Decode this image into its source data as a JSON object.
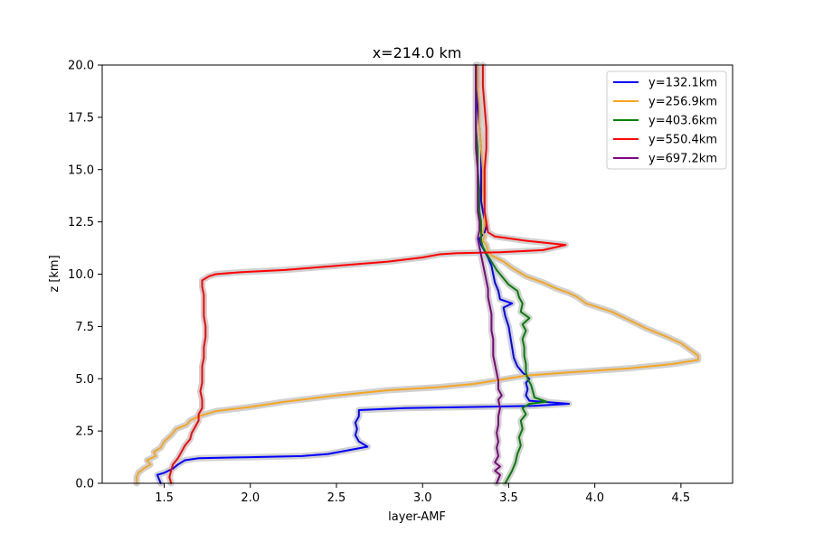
{
  "chart_data": {
    "type": "line",
    "title": "x=214.0 km",
    "xlabel": "layer-AMF",
    "ylabel": "z [km]",
    "xlim": [
      1.14,
      4.8
    ],
    "ylim": [
      0,
      20
    ],
    "xticks": [
      1.5,
      2.0,
      2.5,
      3.0,
      3.5,
      4.0,
      4.5
    ],
    "xtick_labels": [
      "1.5",
      "2.0",
      "2.5",
      "3.0",
      "3.5",
      "4.0",
      "4.5"
    ],
    "yticks": [
      0,
      2.5,
      5,
      7.5,
      10,
      12.5,
      15,
      17.5,
      20
    ],
    "ytick_labels": [
      "0.0",
      "2.5",
      "5.0",
      "7.5",
      "10.0",
      "12.5",
      "15.0",
      "17.5",
      "20.0"
    ],
    "grid": false,
    "legend_position": "top-right",
    "uncertainty_band_color": "#cccccc",
    "series": [
      {
        "name": "y=132.1km",
        "color": "#0000ff",
        "points": [
          [
            1.48,
            0.0
          ],
          [
            1.47,
            0.2
          ],
          [
            1.46,
            0.4
          ],
          [
            1.5,
            0.5
          ],
          [
            1.55,
            0.7
          ],
          [
            1.58,
            0.9
          ],
          [
            1.62,
            1.1
          ],
          [
            1.7,
            1.2
          ],
          [
            2.0,
            1.25
          ],
          [
            2.3,
            1.3
          ],
          [
            2.45,
            1.4
          ],
          [
            2.55,
            1.55
          ],
          [
            2.68,
            1.75
          ],
          [
            2.63,
            2.0
          ],
          [
            2.61,
            2.3
          ],
          [
            2.62,
            2.6
          ],
          [
            2.61,
            2.9
          ],
          [
            2.63,
            3.2
          ],
          [
            2.63,
            3.5
          ],
          [
            2.9,
            3.6
          ],
          [
            3.3,
            3.65
          ],
          [
            3.65,
            3.7
          ],
          [
            3.85,
            3.8
          ],
          [
            3.62,
            3.95
          ],
          [
            3.6,
            4.2
          ],
          [
            3.61,
            4.5
          ],
          [
            3.6,
            4.8
          ],
          [
            3.62,
            5.0
          ],
          [
            3.58,
            5.3
          ],
          [
            3.55,
            5.6
          ],
          [
            3.53,
            6.0
          ],
          [
            3.52,
            6.5
          ],
          [
            3.51,
            7.0
          ],
          [
            3.5,
            7.5
          ],
          [
            3.48,
            8.0
          ],
          [
            3.47,
            8.4
          ],
          [
            3.52,
            8.6
          ],
          [
            3.45,
            8.8
          ],
          [
            3.44,
            9.2
          ],
          [
            3.42,
            9.6
          ],
          [
            3.41,
            10.0
          ],
          [
            3.4,
            10.4
          ],
          [
            3.38,
            10.8
          ],
          [
            3.36,
            11.1
          ],
          [
            3.34,
            11.4
          ],
          [
            3.33,
            11.7
          ],
          [
            3.36,
            12.0
          ],
          [
            3.37,
            12.3
          ],
          [
            3.36,
            12.6
          ],
          [
            3.35,
            13.0
          ],
          [
            3.34,
            13.5
          ],
          [
            3.34,
            14.0
          ],
          [
            3.34,
            15.0
          ],
          [
            3.34,
            16.0
          ],
          [
            3.33,
            17.0
          ],
          [
            3.32,
            18.0
          ],
          [
            3.32,
            19.0
          ],
          [
            3.32,
            20.0
          ]
        ]
      },
      {
        "name": "y=256.9km",
        "color": "#f5a623",
        "points": [
          [
            1.34,
            0.0
          ],
          [
            1.34,
            0.3
          ],
          [
            1.35,
            0.5
          ],
          [
            1.38,
            0.7
          ],
          [
            1.42,
            0.9
          ],
          [
            1.4,
            1.1
          ],
          [
            1.45,
            1.3
          ],
          [
            1.44,
            1.5
          ],
          [
            1.48,
            1.7
          ],
          [
            1.5,
            2.0
          ],
          [
            1.54,
            2.3
          ],
          [
            1.57,
            2.6
          ],
          [
            1.63,
            2.8
          ],
          [
            1.65,
            3.0
          ],
          [
            1.7,
            3.2
          ],
          [
            1.8,
            3.45
          ],
          [
            2.0,
            3.65
          ],
          [
            2.2,
            3.9
          ],
          [
            2.5,
            4.2
          ],
          [
            2.8,
            4.45
          ],
          [
            3.1,
            4.6
          ],
          [
            3.3,
            4.75
          ],
          [
            3.45,
            4.95
          ],
          [
            3.6,
            5.15
          ],
          [
            3.85,
            5.3
          ],
          [
            4.2,
            5.5
          ],
          [
            4.45,
            5.7
          ],
          [
            4.6,
            5.9
          ],
          [
            4.6,
            6.1
          ],
          [
            4.55,
            6.4
          ],
          [
            4.5,
            6.7
          ],
          [
            4.42,
            7.0
          ],
          [
            4.3,
            7.4
          ],
          [
            4.2,
            7.8
          ],
          [
            4.1,
            8.2
          ],
          [
            3.95,
            8.6
          ],
          [
            3.9,
            8.9
          ],
          [
            3.85,
            9.1
          ],
          [
            3.78,
            9.3
          ],
          [
            3.7,
            9.6
          ],
          [
            3.6,
            9.9
          ],
          [
            3.52,
            10.3
          ],
          [
            3.47,
            10.6
          ],
          [
            3.4,
            10.9
          ],
          [
            3.38,
            11.1
          ],
          [
            3.37,
            11.4
          ],
          [
            3.35,
            11.6
          ],
          [
            3.36,
            11.8
          ],
          [
            3.35,
            12.0
          ],
          [
            3.36,
            12.3
          ],
          [
            3.36,
            12.6
          ],
          [
            3.36,
            13.0
          ],
          [
            3.35,
            14.0
          ],
          [
            3.35,
            15.0
          ],
          [
            3.34,
            16.0
          ],
          [
            3.33,
            17.0
          ],
          [
            3.33,
            18.0
          ],
          [
            3.32,
            19.0
          ],
          [
            3.32,
            20.0
          ]
        ]
      },
      {
        "name": "y=403.6km",
        "color": "#008000",
        "points": [
          [
            3.48,
            0.0
          ],
          [
            3.5,
            0.3
          ],
          [
            3.52,
            0.6
          ],
          [
            3.54,
            1.0
          ],
          [
            3.55,
            1.4
          ],
          [
            3.57,
            1.8
          ],
          [
            3.56,
            2.2
          ],
          [
            3.58,
            2.6
          ],
          [
            3.57,
            3.0
          ],
          [
            3.6,
            3.3
          ],
          [
            3.58,
            3.6
          ],
          [
            3.62,
            3.8
          ],
          [
            3.72,
            3.9
          ],
          [
            3.65,
            4.1
          ],
          [
            3.64,
            4.4
          ],
          [
            3.63,
            4.7
          ],
          [
            3.61,
            5.0
          ],
          [
            3.6,
            5.3
          ],
          [
            3.6,
            5.7
          ],
          [
            3.59,
            6.1
          ],
          [
            3.59,
            6.5
          ],
          [
            3.58,
            6.9
          ],
          [
            3.6,
            7.3
          ],
          [
            3.58,
            7.6
          ],
          [
            3.62,
            7.9
          ],
          [
            3.57,
            8.2
          ],
          [
            3.58,
            8.6
          ],
          [
            3.56,
            8.9
          ],
          [
            3.55,
            9.2
          ],
          [
            3.5,
            9.5
          ],
          [
            3.47,
            9.8
          ],
          [
            3.43,
            10.2
          ],
          [
            3.4,
            10.6
          ],
          [
            3.37,
            11.0
          ],
          [
            3.35,
            11.3
          ],
          [
            3.34,
            11.6
          ],
          [
            3.34,
            12.0
          ],
          [
            3.34,
            12.5
          ],
          [
            3.33,
            13.0
          ],
          [
            3.33,
            14.0
          ],
          [
            3.32,
            15.0
          ],
          [
            3.32,
            16.0
          ],
          [
            3.31,
            17.0
          ],
          [
            3.31,
            18.0
          ],
          [
            3.31,
            19.0
          ],
          [
            3.31,
            20.0
          ]
        ]
      },
      {
        "name": "y=550.4km",
        "color": "#ff0000",
        "points": [
          [
            1.54,
            0.0
          ],
          [
            1.53,
            0.3
          ],
          [
            1.54,
            0.6
          ],
          [
            1.55,
            0.9
          ],
          [
            1.58,
            1.2
          ],
          [
            1.6,
            1.5
          ],
          [
            1.62,
            1.8
          ],
          [
            1.65,
            2.1
          ],
          [
            1.66,
            2.4
          ],
          [
            1.68,
            2.7
          ],
          [
            1.7,
            3.0
          ],
          [
            1.7,
            3.3
          ],
          [
            1.72,
            3.6
          ],
          [
            1.72,
            4.0
          ],
          [
            1.71,
            4.4
          ],
          [
            1.72,
            4.8
          ],
          [
            1.72,
            5.2
          ],
          [
            1.72,
            5.6
          ],
          [
            1.73,
            6.0
          ],
          [
            1.73,
            6.5
          ],
          [
            1.74,
            7.0
          ],
          [
            1.74,
            7.5
          ],
          [
            1.73,
            8.0
          ],
          [
            1.73,
            8.5
          ],
          [
            1.73,
            9.0
          ],
          [
            1.72,
            9.4
          ],
          [
            1.72,
            9.7
          ],
          [
            1.76,
            9.9
          ],
          [
            1.8,
            10.0
          ],
          [
            1.95,
            10.1
          ],
          [
            2.2,
            10.2
          ],
          [
            2.5,
            10.4
          ],
          [
            2.8,
            10.6
          ],
          [
            3.0,
            10.8
          ],
          [
            3.1,
            10.95
          ],
          [
            3.2,
            11.0
          ],
          [
            3.45,
            11.05
          ],
          [
            3.7,
            11.15
          ],
          [
            3.83,
            11.4
          ],
          [
            3.6,
            11.6
          ],
          [
            3.42,
            11.8
          ],
          [
            3.38,
            12.0
          ],
          [
            3.37,
            12.5
          ],
          [
            3.36,
            13.0
          ],
          [
            3.36,
            13.5
          ],
          [
            3.36,
            14.0
          ],
          [
            3.36,
            15.0
          ],
          [
            3.37,
            16.0
          ],
          [
            3.37,
            17.0
          ],
          [
            3.36,
            18.0
          ],
          [
            3.35,
            19.0
          ],
          [
            3.35,
            20.0
          ]
        ]
      },
      {
        "name": "y=697.2km",
        "color": "#800080",
        "points": [
          [
            3.43,
            0.0
          ],
          [
            3.44,
            0.2
          ],
          [
            3.45,
            0.4
          ],
          [
            3.42,
            0.6
          ],
          [
            3.45,
            0.8
          ],
          [
            3.42,
            1.0
          ],
          [
            3.44,
            1.3
          ],
          [
            3.43,
            1.7
          ],
          [
            3.44,
            2.0
          ],
          [
            3.43,
            2.4
          ],
          [
            3.44,
            2.8
          ],
          [
            3.44,
            3.2
          ],
          [
            3.45,
            3.6
          ],
          [
            3.44,
            4.0
          ],
          [
            3.46,
            4.2
          ],
          [
            3.44,
            4.5
          ],
          [
            3.44,
            4.9
          ],
          [
            3.43,
            5.3
          ],
          [
            3.42,
            5.7
          ],
          [
            3.41,
            6.1
          ],
          [
            3.41,
            6.5
          ],
          [
            3.41,
            6.9
          ],
          [
            3.4,
            7.3
          ],
          [
            3.4,
            7.7
          ],
          [
            3.4,
            8.1
          ],
          [
            3.39,
            8.5
          ],
          [
            3.38,
            8.9
          ],
          [
            3.38,
            9.3
          ],
          [
            3.37,
            9.7
          ],
          [
            3.36,
            10.1
          ],
          [
            3.35,
            10.5
          ],
          [
            3.34,
            10.9
          ],
          [
            3.33,
            11.3
          ],
          [
            3.32,
            11.7
          ],
          [
            3.33,
            12.1
          ],
          [
            3.33,
            12.5
          ],
          [
            3.32,
            13.0
          ],
          [
            3.32,
            14.0
          ],
          [
            3.32,
            15.0
          ],
          [
            3.31,
            16.0
          ],
          [
            3.31,
            17.0
          ],
          [
            3.31,
            18.0
          ],
          [
            3.31,
            19.0
          ],
          [
            3.31,
            20.0
          ]
        ]
      }
    ]
  }
}
